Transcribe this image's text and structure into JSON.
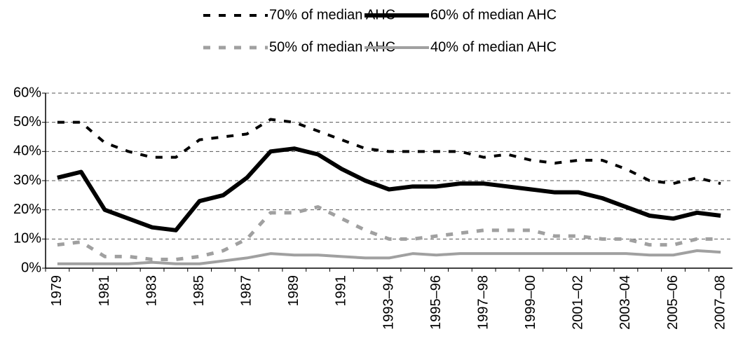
{
  "chart_data": {
    "type": "line",
    "categories": [
      "1979",
      null,
      "1981",
      null,
      "1983",
      null,
      "1985",
      null,
      "1987",
      null,
      "1989",
      null,
      "1991",
      null,
      "1993–94",
      null,
      "1995–96",
      null,
      "1997–98",
      null,
      "1999–00",
      null,
      "2001–02",
      null,
      "2003–04",
      null,
      "2005–06",
      null,
      "2007–08"
    ],
    "series": [
      {
        "name": "70% of median AHC",
        "color": "#000000",
        "dash": "10,12",
        "width": 4,
        "values": [
          50,
          50,
          43,
          40,
          38,
          38,
          44,
          45,
          46,
          51,
          50,
          47,
          44,
          41,
          40,
          40,
          40,
          40,
          38,
          39,
          37,
          36,
          37,
          37,
          34,
          30,
          29,
          31,
          29
        ]
      },
      {
        "name": "60% of median AHC",
        "color": "#000000",
        "dash": null,
        "width": 6,
        "values": [
          31,
          33,
          20,
          17,
          14,
          13,
          23,
          25,
          31,
          40,
          41,
          39,
          34,
          30,
          27,
          28,
          28,
          29,
          29,
          28,
          27,
          26,
          26,
          24,
          21,
          18,
          17,
          19,
          18
        ]
      },
      {
        "name": "50% of median AHC",
        "color": "#a0a0a0",
        "dash": "10,12",
        "width": 5,
        "values": [
          8,
          9,
          4,
          4,
          3,
          3,
          4,
          6,
          10,
          19,
          19,
          21,
          17,
          13,
          10,
          10,
          11,
          12,
          13,
          13,
          13,
          11,
          11,
          10,
          10,
          8,
          8,
          10,
          10
        ]
      },
      {
        "name": "40% of median AHC",
        "color": "#a0a0a0",
        "dash": null,
        "width": 4,
        "values": [
          1.5,
          1.5,
          1.5,
          1.5,
          2,
          1.5,
          1.5,
          2.5,
          3.5,
          5,
          4.5,
          4.5,
          4,
          3.5,
          3.5,
          5,
          4.5,
          5,
          5,
          5,
          5,
          5,
          5,
          5,
          5,
          4.5,
          4.5,
          6,
          5.5
        ]
      }
    ],
    "ylim": [
      0,
      60
    ],
    "yticks": [
      {
        "value": 0,
        "label": "0%"
      },
      {
        "value": 10,
        "label": "10%"
      },
      {
        "value": 20,
        "label": "20%"
      },
      {
        "value": 30,
        "label": "30%"
      },
      {
        "value": 40,
        "label": "40%"
      },
      {
        "value": 50,
        "label": "50%"
      },
      {
        "value": 60,
        "label": "60%"
      }
    ],
    "grid": true,
    "legend": "top"
  }
}
